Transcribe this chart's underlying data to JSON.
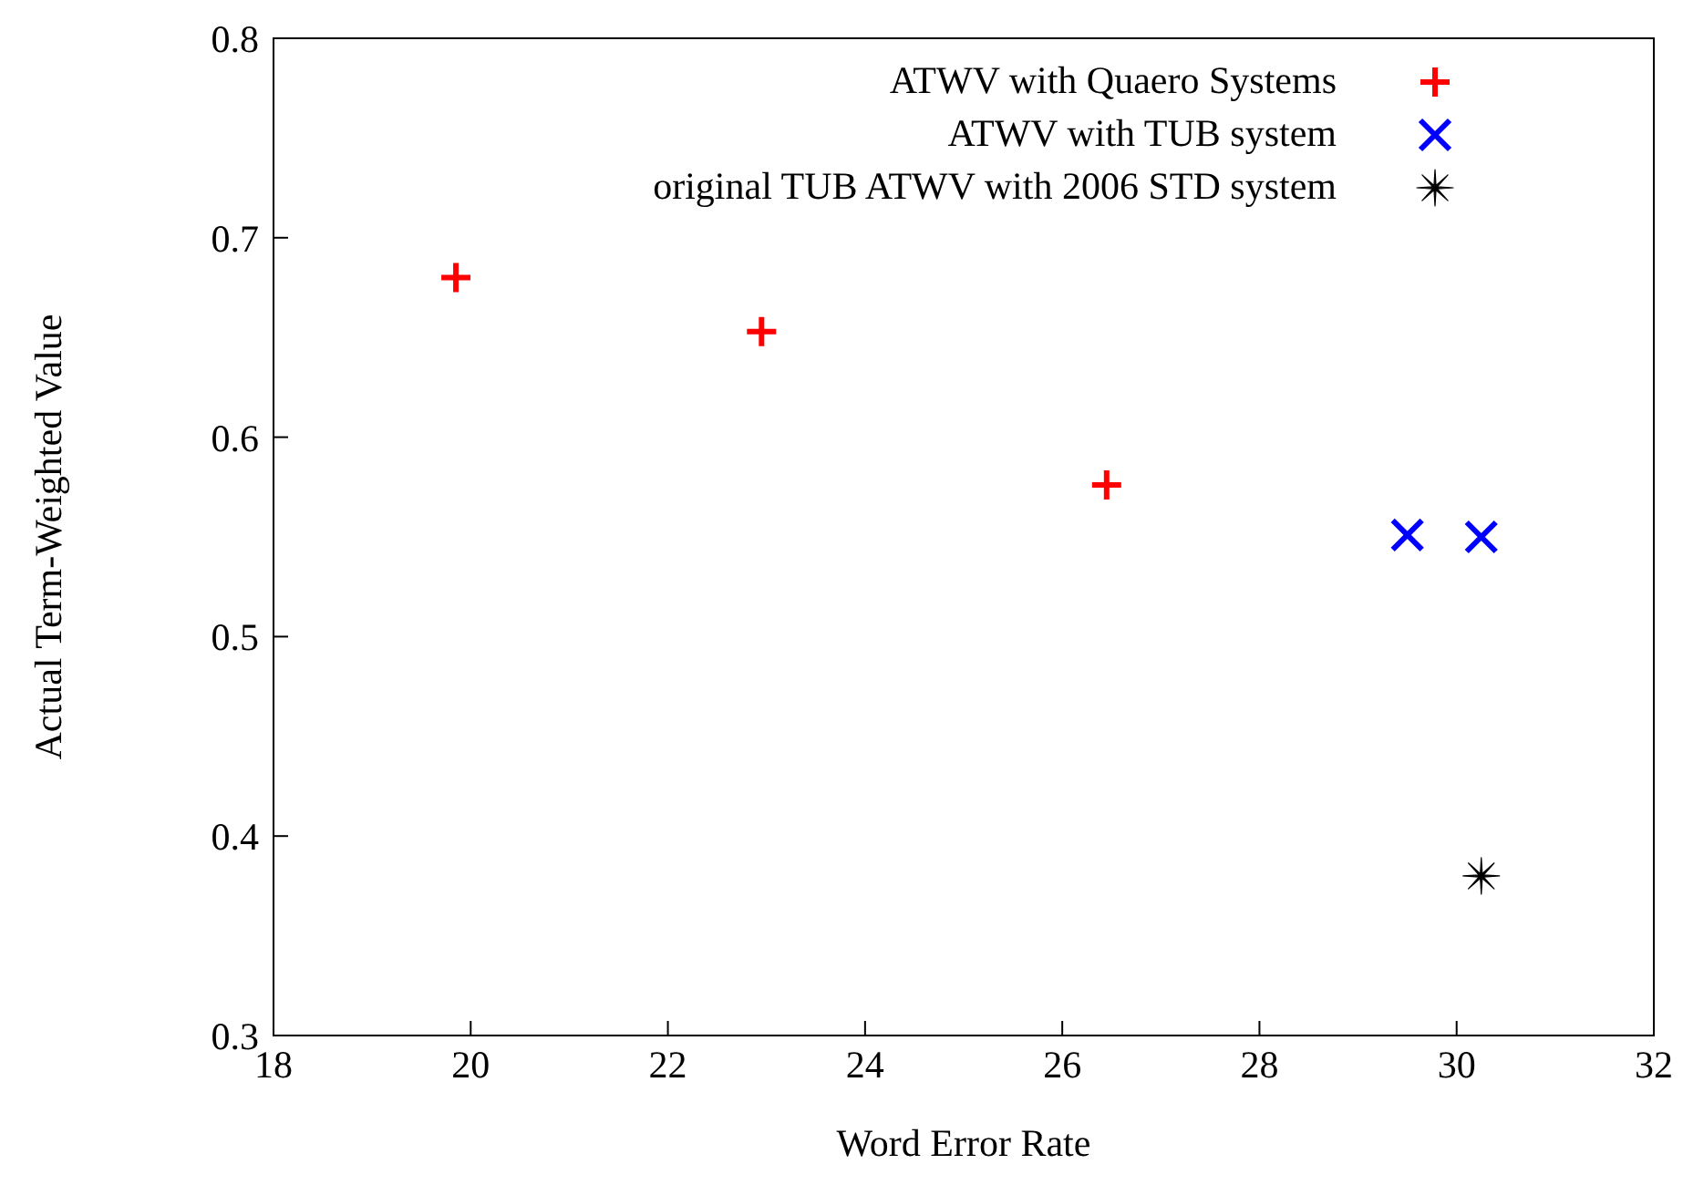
{
  "chart_data": {
    "type": "scatter",
    "xlabel": "Word Error Rate",
    "ylabel": "Actual Term-Weighted Value",
    "xlim": [
      18,
      32
    ],
    "xticks": [
      18,
      20,
      22,
      24,
      26,
      28,
      30,
      32
    ],
    "ylim": [
      0.3,
      0.8
    ],
    "yticks": [
      0.3,
      0.4,
      0.5,
      0.6,
      0.7,
      0.8
    ],
    "grid": false,
    "legend": "top right",
    "series": [
      {
        "name": "ATWV with Quaero Systems",
        "color": "#ff0000",
        "marker": "cross",
        "x": [
          19.85,
          22.95,
          26.45
        ],
        "values": [
          0.68,
          0.653,
          0.576
        ]
      },
      {
        "name": "ATWV with TUB system",
        "color": "#0000ff",
        "marker": "x",
        "x": [
          29.5,
          30.25
        ],
        "values": [
          0.551,
          0.55
        ]
      },
      {
        "name": "original TUB ATWV with 2006 STD system",
        "color": "#000000",
        "marker": "star",
        "x": [
          30.25
        ],
        "values": [
          0.38
        ]
      }
    ]
  }
}
